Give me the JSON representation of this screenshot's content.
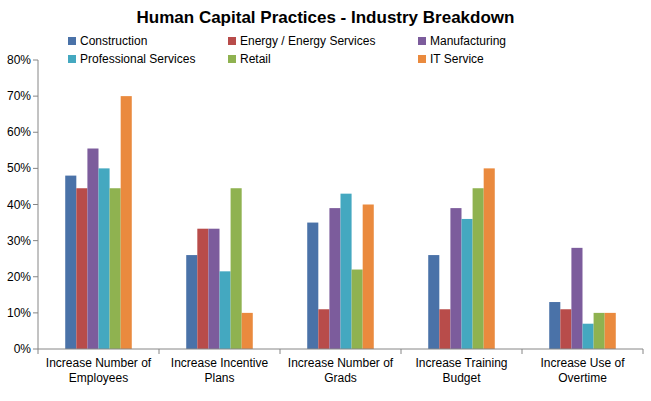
{
  "chart_data": {
    "type": "bar",
    "title": "Human Capital Practices - Industry Breakdown",
    "categories": [
      "Increase Number of Employees",
      "Increase Incentive Plans",
      "Increase Number of Grads",
      "Increase Training Budget",
      "Increase Use of Overtime"
    ],
    "series": [
      {
        "name": "Construction",
        "color": "#4a72a8",
        "values": [
          48,
          26,
          35,
          26,
          13
        ]
      },
      {
        "name": "Energy / Energy Services",
        "color": "#b84c4a",
        "values": [
          44.5,
          33.3,
          11,
          11,
          11
        ]
      },
      {
        "name": "Manufacturing",
        "color": "#7c5c9c",
        "values": [
          55.5,
          33.3,
          39,
          39,
          28
        ]
      },
      {
        "name": "Professional Services",
        "color": "#44a8c0",
        "values": [
          50,
          21.5,
          43,
          36,
          7
        ]
      },
      {
        "name": "Retail",
        "color": "#8fb250",
        "values": [
          44.5,
          44.5,
          22,
          44.5,
          10
        ]
      },
      {
        "name": "IT Service",
        "color": "#ea8a3e",
        "values": [
          70,
          10,
          40,
          50,
          10
        ]
      }
    ],
    "ylim": [
      0,
      80
    ],
    "yticks": [
      {
        "value": 0,
        "label": "0%"
      },
      {
        "value": 10,
        "label": "10%"
      },
      {
        "value": 20,
        "label": "20%"
      },
      {
        "value": 30,
        "label": "30%"
      },
      {
        "value": 40,
        "label": "40%"
      },
      {
        "value": 50,
        "label": "50%"
      },
      {
        "value": 60,
        "label": "60%"
      },
      {
        "value": 70,
        "label": "70%"
      },
      {
        "value": 80,
        "label": "80%"
      }
    ],
    "grid": false,
    "legend": "top"
  }
}
